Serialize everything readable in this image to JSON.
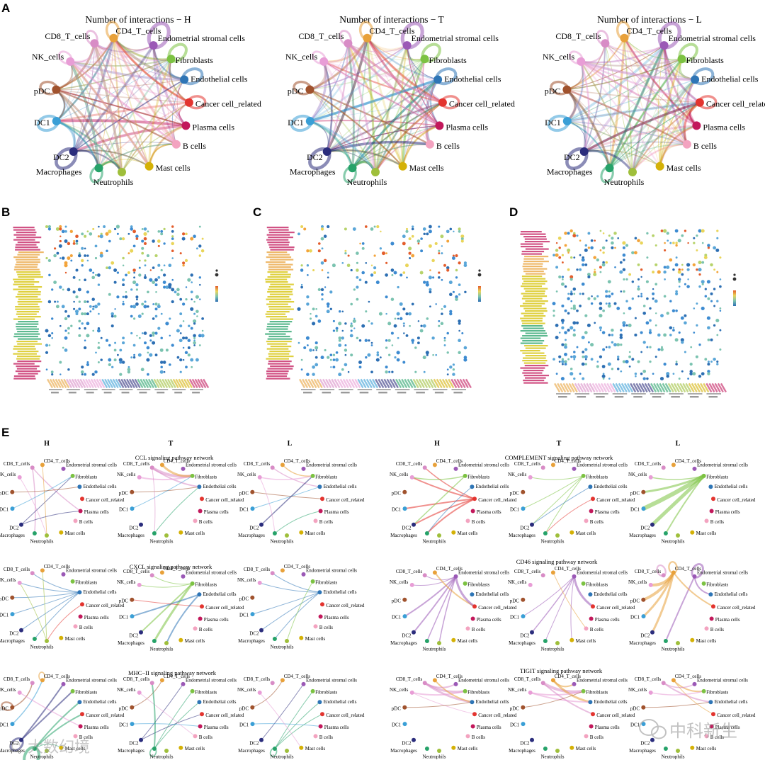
{
  "figure": {
    "panel_labels": {
      "a": "A",
      "b": "B",
      "c": "C",
      "d": "D",
      "e": "E"
    },
    "cell_types": [
      "CD4_T_cells",
      "Endometrial stromal cells",
      "Fibroblasts",
      "Endothelial cells",
      "Cancer cell_related",
      "Plasma cells",
      "B cells",
      "Mast cells",
      "Neutrophils",
      "Macrophages",
      "DC2",
      "DC1",
      "pDC",
      "NK_cells",
      "CD8_T_cells"
    ],
    "node_colors": [
      "#e8a13a",
      "#9b59b6",
      "#7cc242",
      "#2e75b6",
      "#e3342f",
      "#c2185b",
      "#f3a3c0",
      "#d4b106",
      "#9fbf3b",
      "#26a269",
      "#2b2d7c",
      "#3a9fd6",
      "#a0522d",
      "#e89dd6",
      "#d88cc6"
    ],
    "panel_a": {
      "titles": [
        "Number of interactions − H",
        "Number of interactions − T",
        "Number of interactions − L"
      ]
    },
    "panel_e": {
      "col_heads": [
        "H",
        "T",
        "L",
        "H",
        "T",
        "L"
      ],
      "pathway_titles": [
        "CCL signaling pathway network",
        "CXCL signaling pathway network",
        "MHC−II signaling pathway network",
        "COMPLEMENT signaling pathway network",
        "CD46  signaling pathway network",
        "TIGIT  signaling pathway network"
      ]
    }
  },
  "watermarks": {
    "left": "© 大数幻境",
    "right": "中科新生"
  }
}
